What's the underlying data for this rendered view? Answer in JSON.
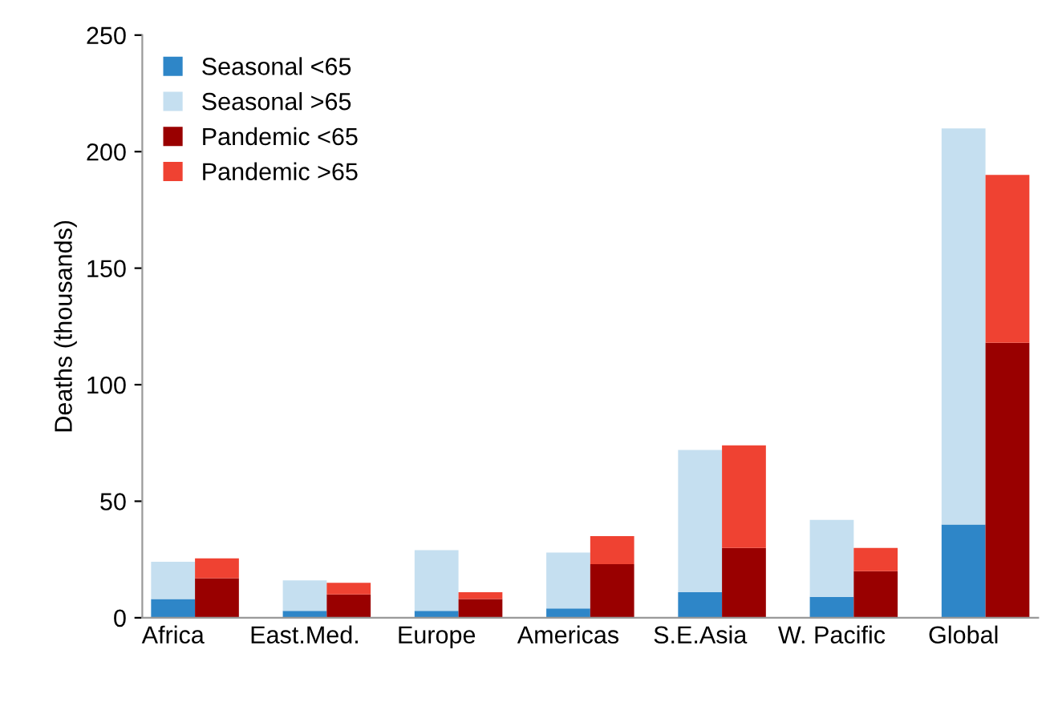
{
  "chart_data": {
    "type": "bar",
    "stacked": true,
    "ylabel": "Deaths (thousands)",
    "grid": false,
    "categories": [
      "Africa",
      null,
      null,
      "East.Med.",
      null,
      null,
      "Europe",
      null,
      null,
      "Americas",
      null,
      null,
      "S.E.Asia",
      null,
      null,
      "W. Pacific",
      null,
      null,
      "Global",
      null
    ],
    "series": [
      {
        "name": "Seasonal <65",
        "color": "#2e86c8",
        "values": [
          8,
          null,
          null,
          3,
          null,
          null,
          3,
          null,
          null,
          4,
          null,
          null,
          11,
          null,
          null,
          9,
          null,
          null,
          40,
          null
        ]
      },
      {
        "name": "Seasonal >65",
        "color": "#c5dff0",
        "values": [
          16,
          null,
          null,
          13,
          null,
          null,
          26,
          null,
          null,
          24,
          null,
          null,
          61,
          null,
          null,
          33,
          null,
          null,
          170,
          null
        ]
      },
      {
        "name": "Pandemic <65",
        "color": "#990000",
        "values": [
          null,
          17,
          null,
          null,
          10,
          null,
          null,
          8,
          null,
          null,
          23,
          null,
          null,
          30,
          null,
          null,
          20,
          null,
          null,
          118
        ]
      },
      {
        "name": "Pandemic >65",
        "color": "#ef4232",
        "values": [
          null,
          8.5,
          null,
          null,
          5,
          null,
          null,
          3,
          null,
          null,
          12,
          null,
          null,
          44,
          null,
          null,
          10,
          null,
          null,
          72
        ]
      }
    ],
    "ylim": [
      0,
      250
    ],
    "yticks": [
      0,
      50,
      100,
      150,
      200,
      250
    ],
    "legend": "top left"
  }
}
